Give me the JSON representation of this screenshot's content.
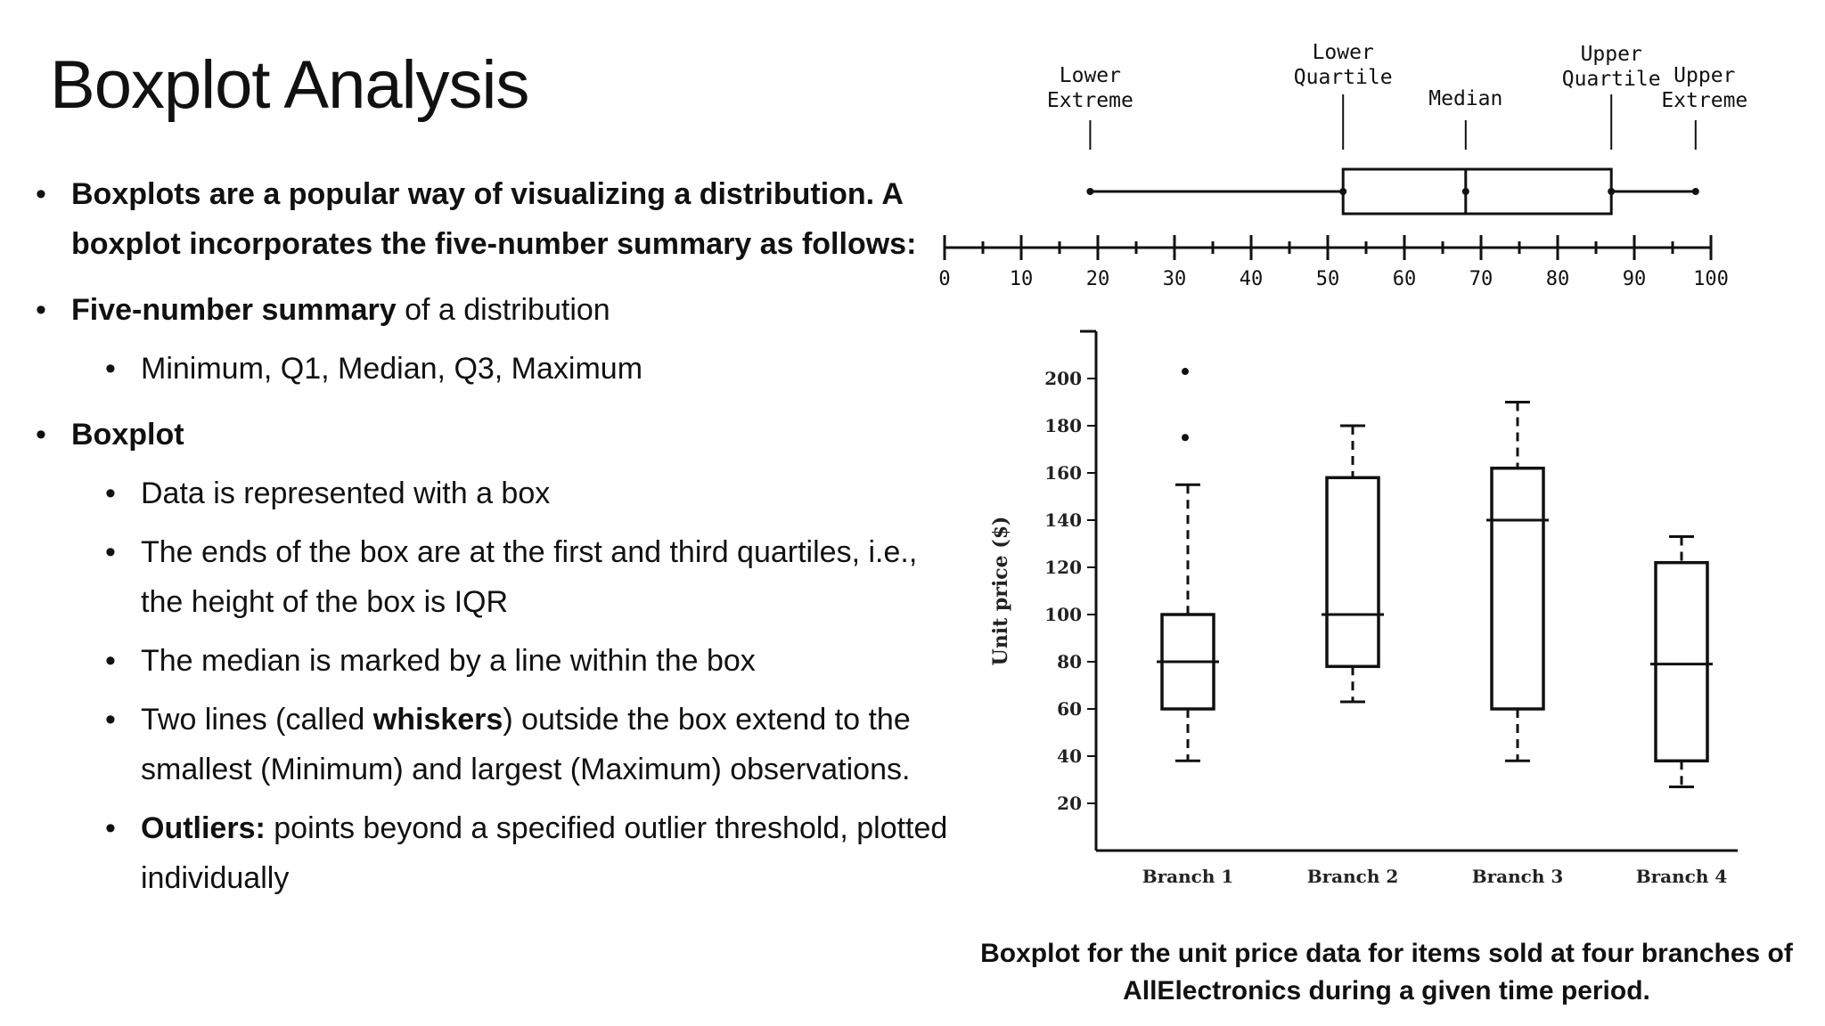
{
  "slide": {
    "title": "Boxplot Analysis",
    "bullets": {
      "b1_text": "Boxplots are a popular way of visualizing a distribution. A boxplot incorporates the five-number summary as follows:",
      "b2_bold": "Five-number summary",
      "b2_text": " of a distribution",
      "b2_sub": "Minimum, Q1, Median, Q3, Maximum",
      "b3_bold": "Boxplot",
      "b3_sub1": "Data is represented with a box",
      "b3_sub2": "The ends of the box are at the first and third quartiles, i.e., the height of the box is IQR",
      "b3_sub3": "The median is marked by a line within the box",
      "b3_sub4_pre": "Two lines (called ",
      "b3_sub4_bold": "whiskers",
      "b3_sub4_post": ") outside the box extend to the smallest (Minimum) and largest (Maximum) observations.",
      "b3_sub5_bold": "Outliers:",
      "b3_sub5_text": " points beyond a specified outlier threshold, plotted individually"
    },
    "caption": "Boxplot for the unit price data for items sold at four branches of AllElectronics during a given time period."
  },
  "chart_data": [
    {
      "type": "boxplot",
      "orientation": "horizontal",
      "labels": {
        "lower_extreme": [
          "Lower",
          "Extreme"
        ],
        "lower_quartile": [
          "Lower",
          "Quartile"
        ],
        "median": [
          "Median"
        ],
        "upper_quartile": [
          "Upper",
          "Quartile"
        ],
        "upper_extreme": [
          "Upper",
          "Extreme"
        ]
      },
      "five_number": {
        "min": 19,
        "q1": 52,
        "median": 68,
        "q3": 87,
        "max": 98
      },
      "xlim": [
        0,
        100
      ],
      "ticks": [
        "0",
        "10",
        "20",
        "30",
        "40",
        "50",
        "60",
        "70",
        "80",
        "90",
        "100"
      ],
      "tick_values": [
        0,
        10,
        20,
        30,
        40,
        50,
        60,
        70,
        80,
        90,
        100
      ]
    },
    {
      "type": "boxplot",
      "orientation": "vertical",
      "ylabel": "Unit price ($)",
      "ylim": [
        0,
        220
      ],
      "yticks": [
        "20",
        "40",
        "60",
        "80",
        "100",
        "120",
        "140",
        "160",
        "180",
        "200"
      ],
      "ytick_values": [
        20,
        40,
        60,
        80,
        100,
        120,
        140,
        160,
        180,
        200
      ],
      "categories": [
        "Branch 1",
        "Branch 2",
        "Branch 3",
        "Branch 4"
      ],
      "boxes": [
        {
          "min": 38,
          "q1": 60,
          "median": 80,
          "q3": 100,
          "max": 155,
          "outliers": [
            175,
            203
          ]
        },
        {
          "min": 63,
          "q1": 78,
          "median": 100,
          "q3": 158,
          "max": 180,
          "outliers": []
        },
        {
          "min": 38,
          "q1": 60,
          "median": 140,
          "q3": 162,
          "max": 190,
          "outliers": []
        },
        {
          "min": 27,
          "q1": 38,
          "median": 79,
          "q3": 122,
          "max": 133,
          "outliers": []
        }
      ]
    }
  ]
}
